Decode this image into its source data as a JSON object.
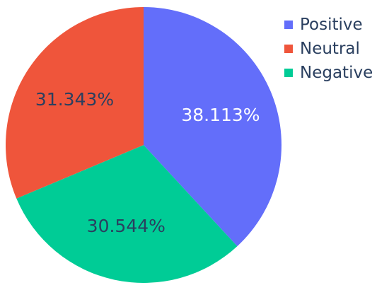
{
  "chart_data": {
    "type": "pie",
    "title": "",
    "direction": "clockwise",
    "start_angle_deg": 0,
    "slices": [
      {
        "label": "Positive",
        "value": 38.113,
        "text": "38.113%",
        "color": "#636efa",
        "text_color": "#ffffff"
      },
      {
        "label": "Negative",
        "value": 30.544,
        "text": "30.544%",
        "color": "#00cc96",
        "text_color": "#2a3f5f"
      },
      {
        "label": "Neutral",
        "value": 31.343,
        "text": "31.343%",
        "color": "#ef553b",
        "text_color": "#2a3f5f"
      }
    ],
    "legend": {
      "placement": "top-right",
      "items": [
        {
          "label": "Positive",
          "color": "#636efa"
        },
        {
          "label": "Neutral",
          "color": "#ef553b"
        },
        {
          "label": "Negative",
          "color": "#00cc96"
        }
      ]
    }
  }
}
